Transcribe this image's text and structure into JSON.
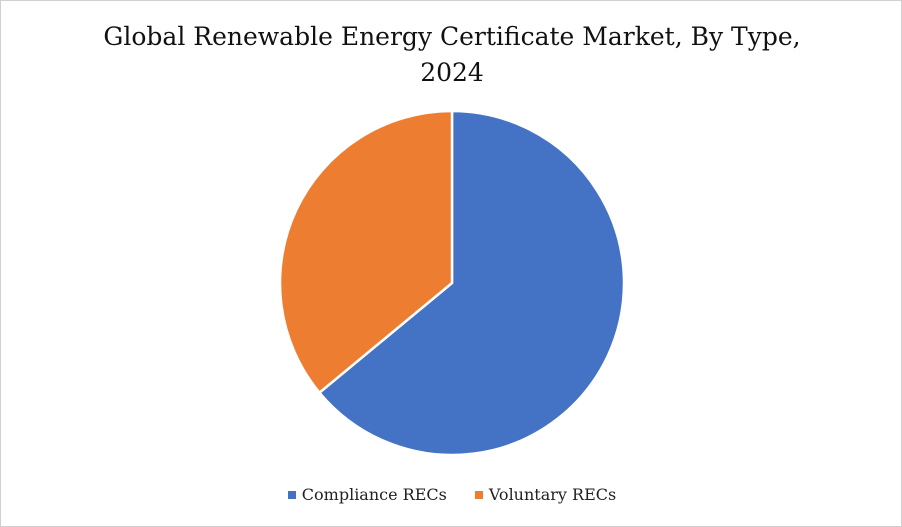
{
  "chart_data": {
    "type": "pie",
    "title_lines": [
      "Global Renewable Energy Certificate Market, By Type,",
      "2024"
    ],
    "categories": [
      "Compliance RECs",
      "Voluntary RECs"
    ],
    "values": [
      64,
      36
    ],
    "unit": "%",
    "colors": [
      "#4472C4",
      "#ED7D31"
    ],
    "legend_position": "bottom",
    "start_angle_deg": 0,
    "direction": "clockwise"
  }
}
